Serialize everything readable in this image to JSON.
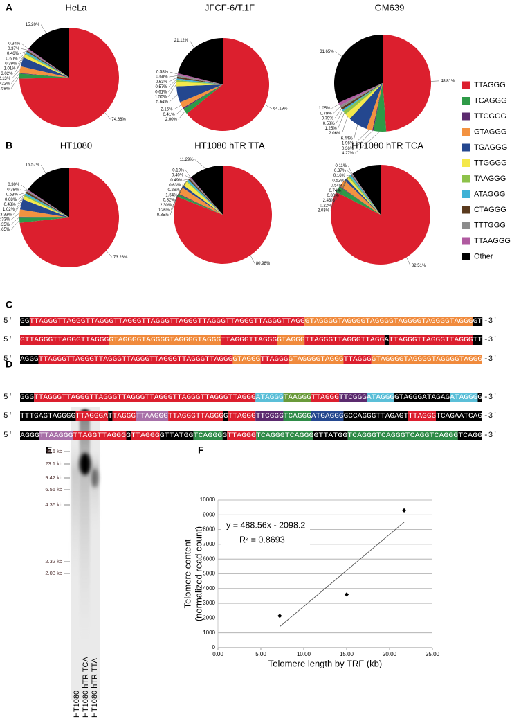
{
  "panels": [
    "A",
    "B",
    "C",
    "D",
    "E",
    "F"
  ],
  "legend": {
    "categories": [
      "TTAGGG",
      "TCAGGG",
      "TTCGGG",
      "GTAGGG",
      "TGAGGG",
      "TTGGGG",
      "TAAGGG",
      "ATAGGG",
      "CTAGGG",
      "TTTGGG",
      "TTAAGGG",
      "Other"
    ],
    "colors": [
      "#dc1f2e",
      "#2e9a47",
      "#5b2a6e",
      "#f39240",
      "#24478f",
      "#f4e84a",
      "#8dc24a",
      "#3fb2d6",
      "#5a3a1e",
      "#8c8c8c",
      "#b05aa0",
      "#000000"
    ]
  },
  "chart_data": [
    {
      "type": "pie",
      "title": "HeLa",
      "values": [
        74.68,
        1.58,
        0.22,
        2.13,
        3.02,
        1.01,
        0.39,
        0.6,
        0.46,
        0.37,
        0.34,
        15.2
      ],
      "value_labels": [
        "74.68%",
        "1.58%",
        "0.22%",
        "2.13%",
        "3.02%",
        "1.01%",
        "0.39%",
        "0.60%",
        "0.46%",
        "0.37%",
        "0.34%",
        "15.20%"
      ]
    },
    {
      "type": "pie",
      "title": "JFCF-6/T.1F",
      "values": [
        64.19,
        2.0,
        0.41,
        2.15,
        5.64,
        1.5,
        0.61,
        0.57,
        0.63,
        0.6,
        0.58,
        21.12
      ],
      "value_labels": [
        "64.19%",
        "2.00%",
        "0.41%",
        "2.15%",
        "5.64%",
        "1.50%",
        "0.61%",
        "0.57%",
        "0.63%",
        "0.60%",
        "0.58%",
        "21.12%"
      ]
    },
    {
      "type": "pie",
      "title": "GM639",
      "values": [
        48.81,
        4.27,
        0.36,
        1.96,
        6.44,
        2.06,
        1.25,
        0.58,
        0.79,
        0.79,
        1.05,
        31.65
      ],
      "value_labels": [
        "48.81%",
        "4.27%",
        "0.36%",
        "1.96%",
        "6.44%",
        "2.06%",
        "1.25%",
        "0.58%",
        "0.79%",
        "0.79%",
        "1.05%",
        "31.65%"
      ]
    },
    {
      "type": "pie",
      "title": "HT1080",
      "values": [
        73.28,
        1.65,
        0.35,
        2.33,
        3.33,
        1.02,
        0.48,
        0.68,
        0.63,
        0.38,
        0.3,
        15.57
      ],
      "value_labels": [
        "73.28%",
        "1.65%",
        "0.35%",
        "2.33%",
        "3.33%",
        "1.02%",
        "0.48%",
        "0.68%",
        "0.63%",
        "0.38%",
        "0.30%",
        "15.57%"
      ]
    },
    {
      "type": "pie",
      "title": "HT1080 hTR TTA",
      "values": [
        80.98,
        0.85,
        0.26,
        2.3,
        0.82,
        1.54,
        0.26,
        0.63,
        0.49,
        0.4,
        0.19,
        11.29
      ],
      "value_labels": [
        "80.98%",
        "0.85%",
        "0.26%",
        "2.30%",
        "0.82%",
        "1.54%",
        "0.26%",
        "0.63%",
        "0.49%",
        "0.40%",
        "0.19%",
        "11.29%"
      ]
    },
    {
      "type": "pie",
      "title": "HT1080 hTR TCA",
      "values": [
        82.51,
        2.03,
        0.22,
        2.43,
        0.8,
        0.74,
        0.54,
        0.52,
        0.16,
        0.37,
        0.11,
        9.57
      ],
      "value_labels": [
        "82.51%",
        "2.03%",
        "0.22%",
        "2.43%",
        "0.80%",
        "0.74%",
        "0.54%",
        "0.52%",
        "0.16%",
        "0.37%",
        "0.11%",
        null
      ]
    },
    {
      "type": "scatter",
      "x": [
        7.2,
        15.0,
        21.7
      ],
      "values": [
        2150,
        3600,
        9300
      ],
      "color": "#000000",
      "xlabel": "Telomere length by TRF (kb)",
      "ylabel": [
        "Telomere content",
        "(normalized read count)"
      ],
      "xlim": [
        0,
        25
      ],
      "ylim": [
        0,
        10000
      ],
      "xticks": [
        {
          "value": 0,
          "label": "0.00"
        },
        {
          "value": 5,
          "label": "5.00"
        },
        {
          "value": 10,
          "label": "10.00"
        },
        {
          "value": 15,
          "label": "15.00"
        },
        {
          "value": 20,
          "label": "20.00"
        },
        {
          "value": 25,
          "label": "25.00"
        }
      ],
      "yticks": [
        0,
        1000,
        2000,
        3000,
        4000,
        5000,
        6000,
        7000,
        8000,
        9000,
        10000
      ],
      "grid": true,
      "trendline": {
        "slope": 488.56,
        "intercept": -2098.2,
        "equation": "y = 488.56x - 2098.2",
        "r_squared_label": "R² = 0.8693"
      }
    }
  ],
  "sequences": {
    "five_prime": "5′",
    "three_prime": "-3′",
    "C": [
      [
        {
          "text": "GG",
          "color": "#000000"
        },
        {
          "text": "TTAGGGTTAGGGTTAGGGTTAGGGTTAGGGTTAGGGTTAGGGTTAGGGTTAGGGTTAGG",
          "color": "#dc1f2e"
        },
        {
          "text": "GTAGGGGTAGGGGTAGGGGTAGGGGTAGGGGTAGGG",
          "color": "#f08a3c"
        },
        {
          "text": "GT",
          "color": "#000000"
        }
      ],
      [
        {
          "text": "GTTAGGGTTAGGGTTAGGG",
          "color": "#dc1f2e"
        },
        {
          "text": "GTAGGGGTAGGGGTAGGGGTAGGG",
          "color": "#f08a3c"
        },
        {
          "text": "TTAGGGTTAGGG",
          "color": "#dc1f2e"
        },
        {
          "text": "GTAGGG",
          "color": "#f08a3c"
        },
        {
          "text": "TTAGGGTTAGGGTTAGG",
          "color": "#dc1f2e"
        },
        {
          "text": "A",
          "color": "#000000"
        },
        {
          "text": "TTAGGGTTAGGGTTAGGG",
          "color": "#dc1f2e"
        },
        {
          "text": "TT",
          "color": "#000000"
        }
      ],
      [
        {
          "text": "AGGG",
          "color": "#000000"
        },
        {
          "text": "TTAGGGTTAGGGTTAGGGTTAGGGTTAGGGTTAGGGTTAGGG",
          "color": "#dc1f2e"
        },
        {
          "text": "GTAGGG",
          "color": "#f08a3c"
        },
        {
          "text": "TTAGGG",
          "color": "#dc1f2e"
        },
        {
          "text": "GTAGGGGTAGGG",
          "color": "#f08a3c"
        },
        {
          "text": "TTAGGG",
          "color": "#dc1f2e"
        },
        {
          "text": "GTAGGGGTAGGGGTAGGGGTAGGG",
          "color": "#f08a3c"
        }
      ]
    ],
    "D": [
      [
        {
          "text": "GGG",
          "color": "#000000"
        },
        {
          "text": "TTAGGGTTAGGGTTAGGGTTAGGGTTAGGGTTAGGGTTAGGGTTAGGG",
          "color": "#dc1f2e"
        },
        {
          "text": "ATAGGG",
          "color": "#5bbfd8"
        },
        {
          "text": "TAAGGG",
          "color": "#6a9a3a"
        },
        {
          "text": "TTAGGG",
          "color": "#dc1f2e"
        },
        {
          "text": "TTCGGG",
          "color": "#5b2a6e"
        },
        {
          "text": "ATAGGG",
          "color": "#5bbfd8"
        },
        {
          "text": "GTAGGGATAGAG",
          "color": "#000000"
        },
        {
          "text": "ATAGGG",
          "color": "#5bbfd8"
        },
        {
          "text": "G",
          "color": "#000000"
        }
      ],
      [
        {
          "text": "TTTGAGTAGGGG",
          "color": "#000000"
        },
        {
          "text": "TTAGGGA",
          "color": "#dc1f2e"
        },
        {
          "text": "T",
          "color": "#000000"
        },
        {
          "text": "TAGGG",
          "color": "#dc1f2e"
        },
        {
          "text": "TTAAGGG",
          "color": "#a870a8"
        },
        {
          "text": "TTAGGGTTAGGG",
          "color": "#dc1f2e"
        },
        {
          "text": "G",
          "color": "#000000"
        },
        {
          "text": "TTAGGG",
          "color": "#dc1f2e"
        },
        {
          "text": "TTCGGG",
          "color": "#5b2a6e"
        },
        {
          "text": "TCAGGG",
          "color": "#2e8b47"
        },
        {
          "text": "ATGAGGG",
          "color": "#24478f"
        },
        {
          "text": "GCCAGGGTTAGAGT",
          "color": "#000000"
        },
        {
          "text": "TTAGGG",
          "color": "#dc1f2e"
        },
        {
          "text": "TCAGAATCAG",
          "color": "#000000"
        }
      ],
      [
        {
          "text": "AGGG",
          "color": "#000000"
        },
        {
          "text": "TTAAGGG",
          "color": "#a870a8"
        },
        {
          "text": "TTAGGTTAGGG",
          "color": "#dc1f2e"
        },
        {
          "text": "G",
          "color": "#000000"
        },
        {
          "text": "TTAGGG",
          "color": "#dc1f2e"
        },
        {
          "text": "GTTATGG",
          "color": "#000000"
        },
        {
          "text": "TCAGGG",
          "color": "#2e8b47"
        },
        {
          "text": "G",
          "color": "#000000"
        },
        {
          "text": "TTAGGG",
          "color": "#dc1f2e"
        },
        {
          "text": "TCAGGGTCAGGG",
          "color": "#2e8b47"
        },
        {
          "text": "GTTATGG",
          "color": "#000000"
        },
        {
          "text": "TCAGGGTCAGGGTCAGGTCAGGG",
          "color": "#2e8b47"
        },
        {
          "text": "TCAGG",
          "color": "#000000"
        }
      ]
    ]
  },
  "gel": {
    "ladder": [
      "48.5 kb",
      "23.1 kb",
      "9.42 kb",
      "6.55 kb",
      "4.36 kb",
      "2.32 kb",
      "2.03 kb"
    ],
    "lanes": [
      "HT1080",
      "HT1080 hTR TCA",
      "HT1080 hTR TTA"
    ]
  }
}
